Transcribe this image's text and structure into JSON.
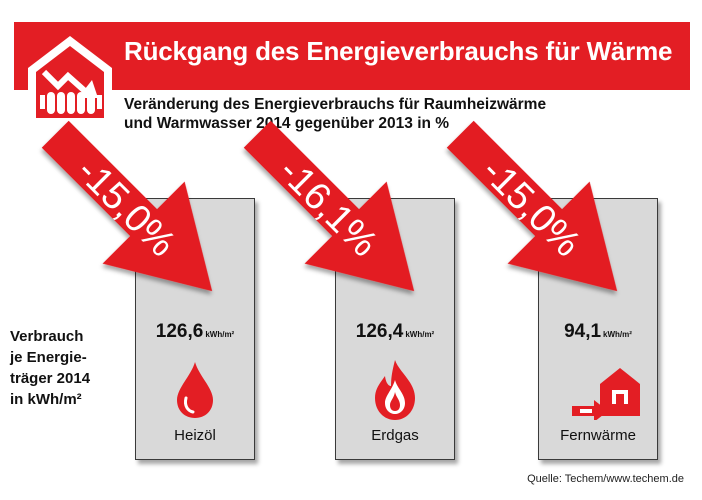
{
  "title": "Rückgang des Energieverbrauchs für Wärme",
  "subtitle_lines": [
    "Veränderung des Energieverbrauchs für Raumheizwärme",
    "und Warmwasser 2014 gegenüber 2013 in %"
  ],
  "side_label_lines": [
    "Verbrauch",
    "je Energie-",
    "träger 2014",
    "in kWh/m²"
  ],
  "source": "Quelle: Techem/www.techem.de",
  "colors": {
    "accent": "#e31e24",
    "card": "#d9d9d9",
    "text": "#111111"
  },
  "chart_data": {
    "type": "bar",
    "categories": [
      "Heizöl",
      "Erdgas",
      "Fernwärme"
    ],
    "unit": "kWh/m²",
    "series": [
      {
        "values": [
          126.6,
          126.4,
          94.1
        ],
        "labels": [
          "126,6",
          "126,4",
          "94,1"
        ]
      },
      {
        "values": [
          -15.0,
          -16.1,
          -15.0
        ],
        "labels": [
          "-15,0%",
          "-16,1%",
          "-15,0%"
        ]
      }
    ],
    "icons": [
      "oil-drop-icon",
      "gas-flame-icon",
      "district-heating-icon"
    ]
  }
}
